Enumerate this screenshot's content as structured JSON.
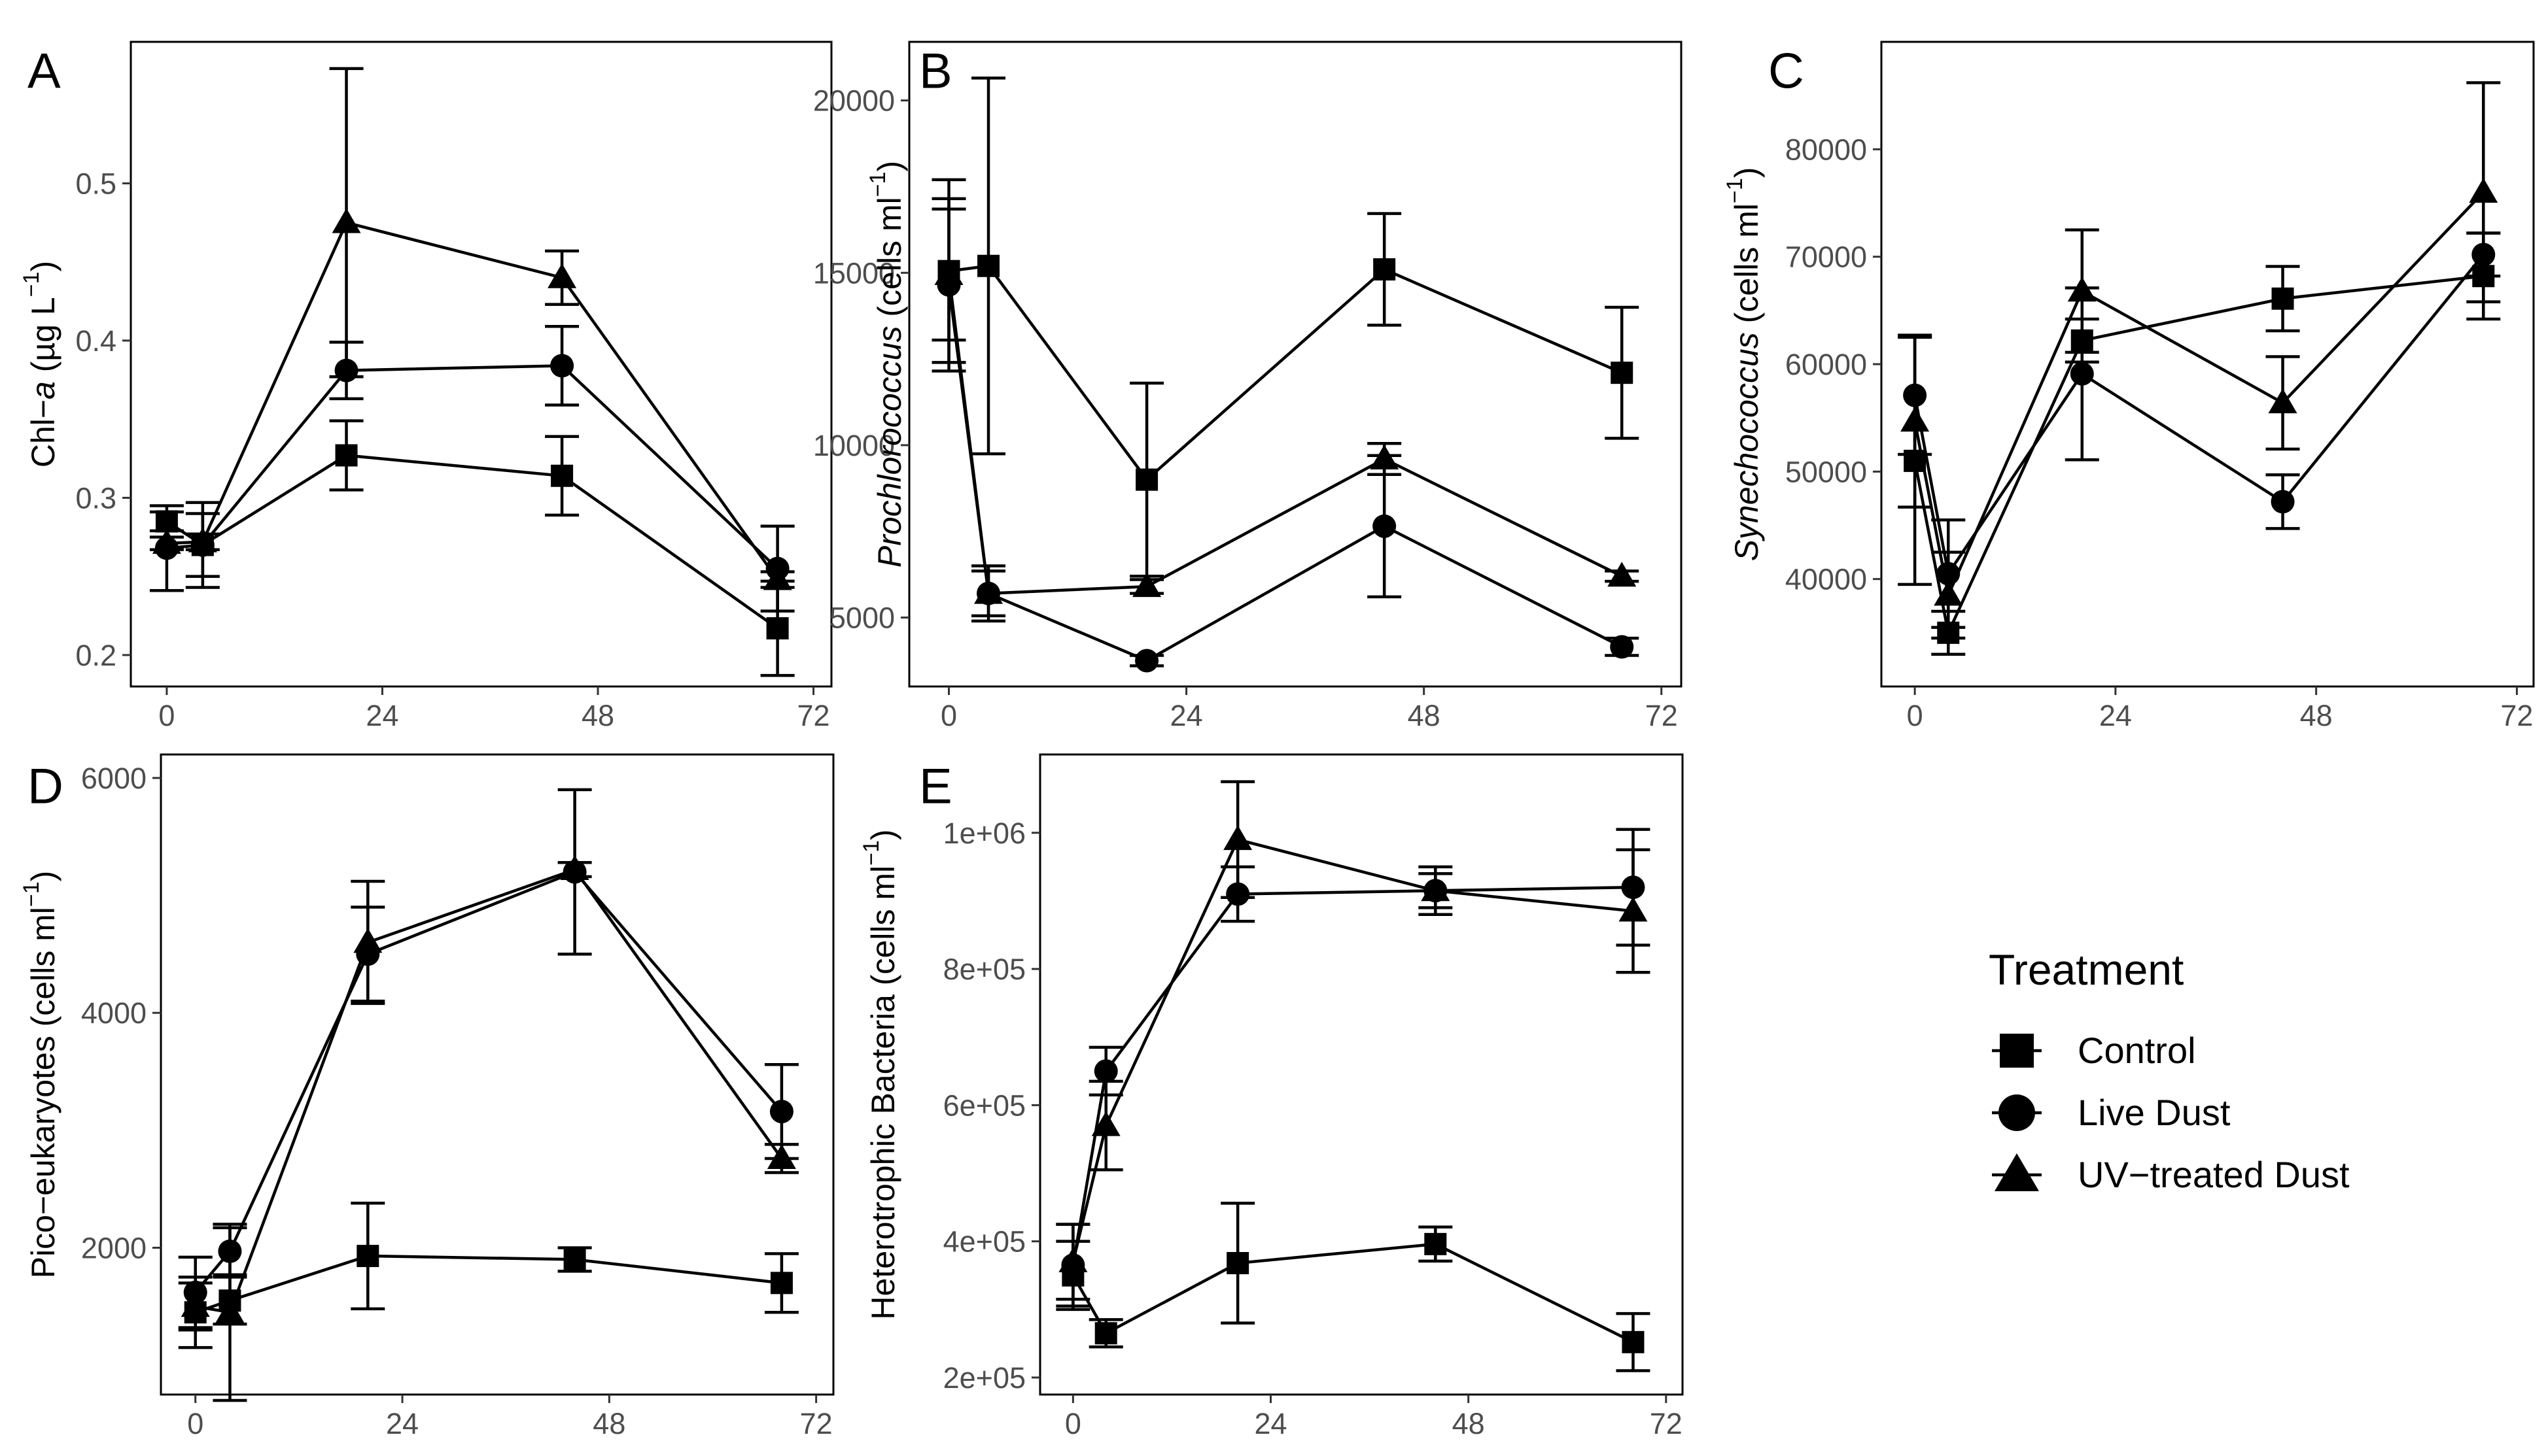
{
  "legend": {
    "title": "Treatment",
    "items": [
      {
        "name": "Control",
        "shape": "square"
      },
      {
        "name": "Live Dust",
        "shape": "circle"
      },
      {
        "name": "UV−treated Dust",
        "shape": "triangle"
      }
    ]
  },
  "chart_data": [
    {
      "panel": "A",
      "type": "line",
      "ylabel": {
        "pre": "Chl−",
        "ital": "a",
        "post": " (µg L",
        "sup": "−1",
        "close": ")"
      },
      "xlim": [
        -4,
        74
      ],
      "ylim": [
        0.18,
        0.59
      ],
      "xticks": [
        0,
        24,
        48,
        72
      ],
      "xticklabels": [
        "0",
        "24",
        "48",
        "72"
      ],
      "yticks": [
        0.2,
        0.3,
        0.4,
        0.5
      ],
      "yticklabels": [
        "0.2",
        "0.3",
        "0.4",
        "0.5"
      ],
      "series": [
        {
          "name": "Control",
          "x": [
            0,
            4,
            20,
            44,
            68
          ],
          "y": [
            0.285,
            0.27,
            0.327,
            0.314,
            0.217
          ],
          "err": [
            0.006,
            0.02,
            0.022,
            0.025,
            0.03
          ]
        },
        {
          "name": "Live Dust",
          "x": [
            0,
            4,
            20,
            44,
            68
          ],
          "y": [
            0.268,
            0.27,
            0.381,
            0.384,
            0.255
          ],
          "err": [
            0.027,
            0.027,
            0.018,
            0.025,
            0.027
          ]
        },
        {
          "name": "UV−treated Dust",
          "x": [
            0,
            4,
            20,
            44,
            68
          ],
          "y": [
            0.271,
            0.272,
            0.475,
            0.44,
            0.248
          ],
          "err": [
            0.004,
            0.005,
            0.098,
            0.017,
            0.005
          ]
        }
      ]
    },
    {
      "panel": "B",
      "type": "line",
      "ylabel": {
        "ital": "Prochlorococcus",
        "post": " (cells ml",
        "sup": "−1",
        "close": ")"
      },
      "xlim": [
        -4,
        74
      ],
      "ylim": [
        3000,
        21700
      ],
      "xticks": [
        0,
        24,
        48,
        72
      ],
      "xticklabels": [
        "0",
        "24",
        "48",
        "72"
      ],
      "yticks": [
        5000,
        10000,
        15000,
        20000
      ],
      "yticklabels": [
        "5000",
        "10000",
        "15000",
        "20000"
      ],
      "series": [
        {
          "name": "Control",
          "x": [
            0,
            4,
            20,
            44,
            68
          ],
          "y": [
            15050,
            15200,
            9000,
            15100,
            12100
          ],
          "err": [
            2650,
            5450,
            2800,
            1620,
            1900
          ]
        },
        {
          "name": "Live Dust",
          "x": [
            0,
            4,
            20,
            44,
            68
          ],
          "y": [
            14650,
            5700,
            3750,
            7650,
            4150
          ],
          "err": [
            2500,
            650,
            150,
            2050,
            250
          ]
        },
        {
          "name": "UV−treated Dust",
          "x": [
            0,
            4,
            20,
            44,
            68
          ],
          "y": [
            14950,
            5700,
            5900,
            9600,
            6200
          ],
          "err": [
            1900,
            800,
            200,
            450,
            150
          ]
        }
      ]
    },
    {
      "panel": "C",
      "type": "line",
      "ylabel": {
        "ital": "Synechococcus",
        "post": " (cells ml",
        "sup": "−1",
        "close": ")"
      },
      "xlim": [
        -4,
        74
      ],
      "ylim": [
        30000,
        90000
      ],
      "xticks": [
        0,
        24,
        48,
        72
      ],
      "xticklabels": [
        "0",
        "24",
        "48",
        "72"
      ],
      "yticks": [
        40000,
        50000,
        60000,
        70000,
        80000
      ],
      "yticklabels": [
        "40000",
        "50000",
        "60000",
        "70000",
        "80000"
      ],
      "series": [
        {
          "name": "Control",
          "x": [
            0,
            4,
            20,
            44,
            68
          ],
          "y": [
            51000,
            35000,
            62200,
            66100,
            68200
          ],
          "err": [
            11500,
            2000,
            2000,
            3000,
            4000
          ]
        },
        {
          "name": "Live Dust",
          "x": [
            0,
            4,
            20,
            44,
            68
          ],
          "y": [
            57100,
            40500,
            59100,
            47200,
            70200
          ],
          "err": [
            5500,
            5000,
            8000,
            2500,
            2000
          ]
        },
        {
          "name": "UV−treated Dust",
          "x": [
            0,
            4,
            20,
            44,
            68
          ],
          "y": [
            54700,
            38500,
            66800,
            56400,
            76000
          ],
          "err": [
            8000,
            4000,
            5700,
            4300,
            10200
          ]
        }
      ]
    },
    {
      "panel": "D",
      "type": "line",
      "ylabel": {
        "pre": "Pico−eukaryotes",
        "post": " (cells ml",
        "sup": "−1",
        "close": ")"
      },
      "xlim": [
        -4,
        74
      ],
      "ylim": [
        750,
        6200
      ],
      "xticks": [
        0,
        24,
        48,
        72
      ],
      "xticklabels": [
        "0",
        "24",
        "48",
        "72"
      ],
      "yticks": [
        2000,
        4000,
        6000
      ],
      "yticklabels": [
        "2000",
        "4000",
        "6000"
      ],
      "series": [
        {
          "name": "Control",
          "x": [
            0,
            4,
            20,
            44,
            68
          ],
          "y": [
            1450,
            1550,
            1930,
            1900,
            1700
          ],
          "err": [
            300,
            200,
            450,
            100,
            250
          ]
        },
        {
          "name": "Live Dust",
          "x": [
            0,
            4,
            20,
            44,
            68
          ],
          "y": [
            1620,
            1970,
            4500,
            5200,
            3160
          ],
          "err": [
            300,
            200,
            400,
            700,
            400
          ]
        },
        {
          "name": "UV−treated Dust",
          "x": [
            0,
            4,
            20,
            44,
            68
          ],
          "y": [
            1500,
            1450,
            4600,
            5220,
            2760
          ],
          "err": [
            200,
            750,
            520,
            60,
            120
          ]
        }
      ]
    },
    {
      "panel": "E",
      "type": "line",
      "ylabel": {
        "pre": "Heterotrophic Bacteria",
        "post": " (cells ml",
        "sup": "−1",
        "close": ")"
      },
      "xlim": [
        -4,
        74
      ],
      "ylim": [
        175000,
        1115000
      ],
      "xticks": [
        0,
        24,
        48,
        72
      ],
      "xticklabels": [
        "0",
        "24",
        "48",
        "72"
      ],
      "yticks": [
        200000,
        400000,
        600000,
        800000,
        1000000
      ],
      "yticklabels": [
        "2e+05",
        "4e+05",
        "6e+05",
        "8e+05",
        "1e+06"
      ],
      "series": [
        {
          "name": "Control",
          "x": [
            0,
            4,
            20,
            44,
            68
          ],
          "y": [
            350000,
            265000,
            368000,
            396000,
            252000
          ],
          "err": [
            50000,
            20000,
            88000,
            25000,
            42000
          ]
        },
        {
          "name": "Live Dust",
          "x": [
            0,
            4,
            20,
            44,
            68
          ],
          "y": [
            365000,
            650000,
            910000,
            915000,
            920000
          ],
          "err": [
            60000,
            35000,
            40000,
            25000,
            85000
          ]
        },
        {
          "name": "UV−treated Dust",
          "x": [
            0,
            4,
            20,
            44,
            68
          ],
          "y": [
            370000,
            570000,
            990000,
            915000,
            885000
          ],
          "err": [
            55000,
            65000,
            85000,
            35000,
            90000
          ]
        }
      ]
    }
  ]
}
